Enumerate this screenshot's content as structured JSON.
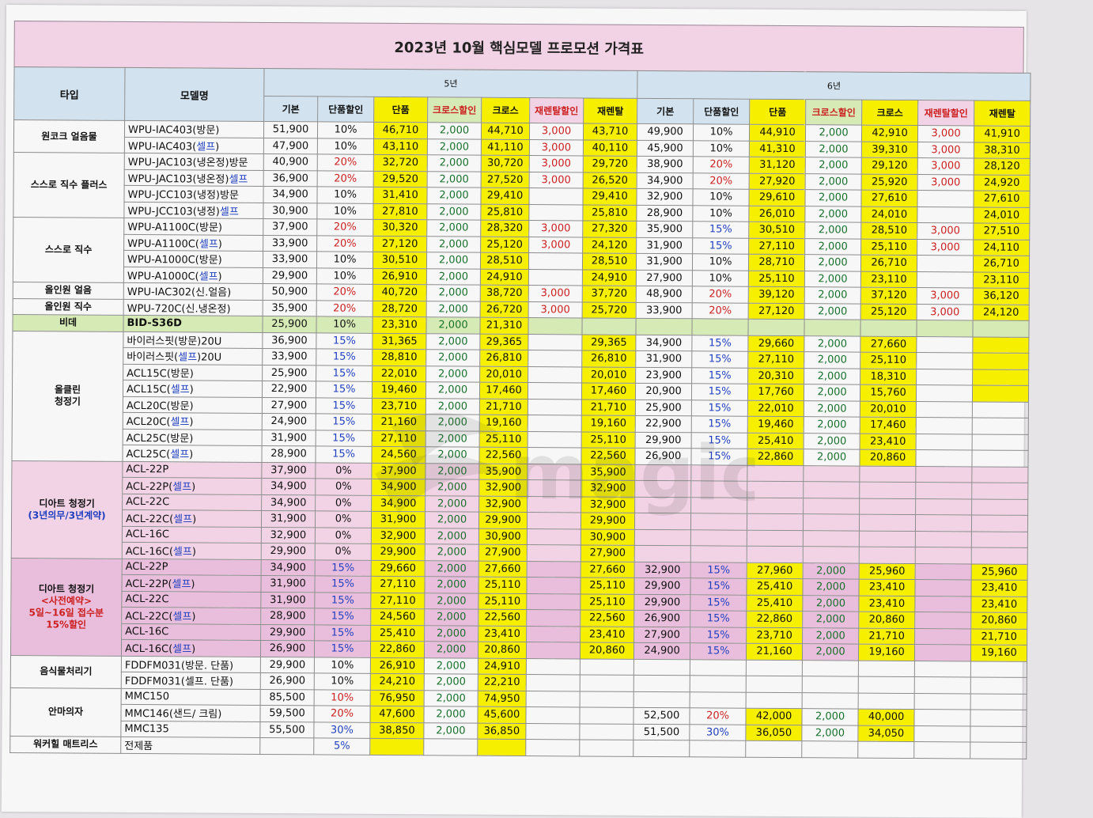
{
  "title": "2023년 10월 핵심모델 프로모션 가격표",
  "headers": {
    "type": "타입",
    "model": "모델명",
    "year5": "5년",
    "year6": "6년",
    "cols5": [
      "기본",
      "단품할인",
      "단품",
      "크로스할인",
      "크로스",
      "재렌탈할인",
      "재렌탈"
    ],
    "cols6": [
      "기본",
      "단품할인",
      "단품",
      "크로스할인",
      "크로스",
      "재렌탈할인",
      "재렌탈"
    ]
  },
  "type_labels": {
    "t1": "원코크 얼음물",
    "t2": "스스로 직수 플러스",
    "t3": "스스로 직수",
    "t4": "올인원 얼음",
    "t5": "올인원 직수",
    "t6": "비데",
    "t7a": "올클린",
    "t7b": "청정기",
    "t8a": "디아트 청정기",
    "t8b": "(3년의무/3년계약)",
    "t9a": "디아트 청정기",
    "t9b": "<사전예약>",
    "t9c": "5일~16일 접수분",
    "t9d": "15%할인",
    "t10": "음식물처리기",
    "t11": "안마의자",
    "t12": "워커힐 매트리스"
  },
  "rows": [
    {
      "model": "WPU-IAC403(방문)",
      "m": [
        "51,900",
        "10%",
        "46,710",
        "2,000",
        "44,710",
        "3,000",
        "43,710"
      ],
      "s": [
        "49,900",
        "10%",
        "44,910",
        "2,000",
        "42,910",
        "3,000",
        "41,910"
      ]
    },
    {
      "model": "WPU-IAC403(셀프)",
      "m": [
        "47,900",
        "10%",
        "43,110",
        "2,000",
        "41,110",
        "3,000",
        "40,110"
      ],
      "s": [
        "45,900",
        "10%",
        "41,310",
        "2,000",
        "39,310",
        "3,000",
        "38,310"
      ]
    },
    {
      "model": "WPU-JAC103(냉온정)방문",
      "m": [
        "40,900",
        "20%",
        "32,720",
        "2,000",
        "30,720",
        "3,000",
        "29,720"
      ],
      "s": [
        "38,900",
        "20%",
        "31,120",
        "2,000",
        "29,120",
        "3,000",
        "28,120"
      ]
    },
    {
      "model": "WPU-JAC103(냉온정)셀프",
      "m": [
        "36,900",
        "20%",
        "29,520",
        "2,000",
        "27,520",
        "3,000",
        "26,520"
      ],
      "s": [
        "34,900",
        "20%",
        "27,920",
        "2,000",
        "25,920",
        "3,000",
        "24,920"
      ]
    },
    {
      "model": "WPU-JCC103(냉정)방문",
      "m": [
        "34,900",
        "10%",
        "31,410",
        "2,000",
        "29,410",
        "",
        "29,410"
      ],
      "s": [
        "32,900",
        "10%",
        "29,610",
        "2,000",
        "27,610",
        "",
        "27,610"
      ]
    },
    {
      "model": "WPU-JCC103(냉정)셀프",
      "m": [
        "30,900",
        "10%",
        "27,810",
        "2,000",
        "25,810",
        "",
        "25,810"
      ],
      "s": [
        "28,900",
        "10%",
        "26,010",
        "2,000",
        "24,010",
        "",
        "24,010"
      ]
    },
    {
      "model": "WPU-A1100C(방문)",
      "m": [
        "37,900",
        "20%",
        "30,320",
        "2,000",
        "28,320",
        "3,000",
        "27,320"
      ],
      "s": [
        "35,900",
        "15%",
        "30,510",
        "2,000",
        "28,510",
        "3,000",
        "27,510"
      ]
    },
    {
      "model": "WPU-A1100C(셀프)",
      "m": [
        "33,900",
        "20%",
        "27,120",
        "2,000",
        "25,120",
        "3,000",
        "24,120"
      ],
      "s": [
        "31,900",
        "15%",
        "27,110",
        "2,000",
        "25,110",
        "3,000",
        "24,110"
      ]
    },
    {
      "model": "WPU-A1000C(방문)",
      "m": [
        "33,900",
        "10%",
        "30,510",
        "2,000",
        "28,510",
        "",
        "28,510"
      ],
      "s": [
        "31,900",
        "10%",
        "28,710",
        "2,000",
        "26,710",
        "",
        "26,710"
      ]
    },
    {
      "model": "WPU-A1000C(셀프)",
      "m": [
        "29,900",
        "10%",
        "26,910",
        "2,000",
        "24,910",
        "",
        "24,910"
      ],
      "s": [
        "27,900",
        "10%",
        "25,110",
        "2,000",
        "23,110",
        "",
        "23,110"
      ]
    },
    {
      "model": "WPU-IAC302(신.얼음)",
      "m": [
        "50,900",
        "20%",
        "40,720",
        "2,000",
        "38,720",
        "3,000",
        "37,720"
      ],
      "s": [
        "48,900",
        "20%",
        "39,120",
        "2,000",
        "37,120",
        "3,000",
        "36,120"
      ]
    },
    {
      "model": "WPU-720C(신.냉온정)",
      "m": [
        "35,900",
        "20%",
        "28,720",
        "2,000",
        "26,720",
        "3,000",
        "25,720"
      ],
      "s": [
        "33,900",
        "20%",
        "27,120",
        "2,000",
        "25,120",
        "3,000",
        "24,120"
      ]
    },
    {
      "model": "BID-S36D",
      "m": [
        "25,900",
        "10%",
        "23,310",
        "2,000",
        "21,310",
        "",
        ""
      ],
      "s": [
        "",
        "",
        "",
        "",
        "",
        "",
        ""
      ]
    },
    {
      "model": "바이러스핏(방문)20U",
      "m": [
        "36,900",
        "15%",
        "31,365",
        "2,000",
        "29,365",
        "",
        "29,365"
      ],
      "s": [
        "34,900",
        "15%",
        "29,660",
        "2,000",
        "27,660",
        "",
        ""
      ]
    },
    {
      "model": "바이러스핏(셀프)20U",
      "m": [
        "33,900",
        "15%",
        "28,810",
        "2,000",
        "26,810",
        "",
        "26,810"
      ],
      "s": [
        "31,900",
        "15%",
        "27,110",
        "2,000",
        "25,110",
        "",
        ""
      ]
    },
    {
      "model": "ACL15C(방문)",
      "m": [
        "25,900",
        "15%",
        "22,010",
        "2,000",
        "20,010",
        "",
        "20,010"
      ],
      "s": [
        "23,900",
        "15%",
        "20,310",
        "2,000",
        "18,310",
        "",
        ""
      ]
    },
    {
      "model": "ACL15C(셀프)",
      "m": [
        "22,900",
        "15%",
        "19,460",
        "2,000",
        "17,460",
        "",
        "17,460"
      ],
      "s": [
        "20,900",
        "15%",
        "17,760",
        "2,000",
        "15,760",
        "",
        ""
      ]
    },
    {
      "model": "ACL20C(방문)",
      "m": [
        "27,900",
        "15%",
        "23,710",
        "2,000",
        "21,710",
        "",
        "21,710"
      ],
      "s": [
        "25,900",
        "15%",
        "22,010",
        "2,000",
        "20,010",
        "",
        ""
      ]
    },
    {
      "model": "ACL20C(셀프)",
      "m": [
        "24,900",
        "15%",
        "21,160",
        "2,000",
        "19,160",
        "",
        "19,160"
      ],
      "s": [
        "22,900",
        "15%",
        "19,460",
        "2,000",
        "17,460",
        "",
        ""
      ]
    },
    {
      "model": "ACL25C(방문)",
      "m": [
        "31,900",
        "15%",
        "27,110",
        "2,000",
        "25,110",
        "",
        "25,110"
      ],
      "s": [
        "29,900",
        "15%",
        "25,410",
        "2,000",
        "23,410",
        "",
        ""
      ]
    },
    {
      "model": "ACL25C(셀프)",
      "m": [
        "28,900",
        "15%",
        "24,560",
        "2,000",
        "22,560",
        "",
        "22,560"
      ],
      "s": [
        "26,900",
        "15%",
        "22,860",
        "2,000",
        "20,860",
        "",
        ""
      ]
    },
    {
      "model": "ACL-22P",
      "m": [
        "37,900",
        "0%",
        "37,900",
        "2,000",
        "35,900",
        "",
        "35,900"
      ],
      "s": [
        "",
        "",
        "",
        "",
        "",
        "",
        ""
      ]
    },
    {
      "model": "ACL-22P(셀프)",
      "m": [
        "34,900",
        "0%",
        "34,900",
        "2,000",
        "32,900",
        "",
        "32,900"
      ],
      "s": [
        "",
        "",
        "",
        "",
        "",
        "",
        ""
      ]
    },
    {
      "model": "ACL-22C",
      "m": [
        "34,900",
        "0%",
        "34,900",
        "2,000",
        "32,900",
        "",
        "32,900"
      ],
      "s": [
        "",
        "",
        "",
        "",
        "",
        "",
        ""
      ]
    },
    {
      "model": "ACL-22C(셀프)",
      "m": [
        "31,900",
        "0%",
        "31,900",
        "2,000",
        "29,900",
        "",
        "29,900"
      ],
      "s": [
        "",
        "",
        "",
        "",
        "",
        "",
        ""
      ]
    },
    {
      "model": "ACL-16C",
      "m": [
        "32,900",
        "0%",
        "32,900",
        "2,000",
        "30,900",
        "",
        "30,900"
      ],
      "s": [
        "",
        "",
        "",
        "",
        "",
        "",
        ""
      ]
    },
    {
      "model": "ACL-16C(셀프)",
      "m": [
        "29,900",
        "0%",
        "29,900",
        "2,000",
        "27,900",
        "",
        "27,900"
      ],
      "s": [
        "",
        "",
        "",
        "",
        "",
        "",
        ""
      ]
    },
    {
      "model": "ACL-22P",
      "m": [
        "34,900",
        "15%",
        "29,660",
        "2,000",
        "27,660",
        "",
        "27,660"
      ],
      "s": [
        "32,900",
        "15%",
        "27,960",
        "2,000",
        "25,960",
        "",
        "25,960"
      ]
    },
    {
      "model": "ACL-22P(셀프)",
      "m": [
        "31,900",
        "15%",
        "27,110",
        "2,000",
        "25,110",
        "",
        "25,110"
      ],
      "s": [
        "29,900",
        "15%",
        "25,410",
        "2,000",
        "23,410",
        "",
        "23,410"
      ]
    },
    {
      "model": "ACL-22C",
      "m": [
        "31,900",
        "15%",
        "27,110",
        "2,000",
        "25,110",
        "",
        "25,110"
      ],
      "s": [
        "29,900",
        "15%",
        "25,410",
        "2,000",
        "23,410",
        "",
        "23,410"
      ]
    },
    {
      "model": "ACL-22C(셀프)",
      "m": [
        "28,900",
        "15%",
        "24,560",
        "2,000",
        "22,560",
        "",
        "22,560"
      ],
      "s": [
        "26,900",
        "15%",
        "22,860",
        "2,000",
        "20,860",
        "",
        "20,860"
      ]
    },
    {
      "model": "ACL-16C",
      "m": [
        "29,900",
        "15%",
        "25,410",
        "2,000",
        "23,410",
        "",
        "23,410"
      ],
      "s": [
        "27,900",
        "15%",
        "23,710",
        "2,000",
        "21,710",
        "",
        "21,710"
      ]
    },
    {
      "model": "ACL-16C(셀프)",
      "m": [
        "26,900",
        "15%",
        "22,860",
        "2,000",
        "20,860",
        "",
        "20,860"
      ],
      "s": [
        "24,900",
        "15%",
        "21,160",
        "2,000",
        "19,160",
        "",
        "19,160"
      ]
    },
    {
      "model": "FDDFM031(방문. 단품)",
      "m": [
        "29,900",
        "10%",
        "26,910",
        "2,000",
        "24,910",
        "",
        ""
      ],
      "s": [
        "",
        "",
        "",
        "",
        "",
        "",
        ""
      ]
    },
    {
      "model": "FDDFM031(셀프. 단품)",
      "m": [
        "26,900",
        "10%",
        "24,210",
        "2,000",
        "22,210",
        "",
        ""
      ],
      "s": [
        "",
        "",
        "",
        "",
        "",
        "",
        ""
      ]
    },
    {
      "model": "MMC150",
      "m": [
        "85,500",
        "10%",
        "76,950",
        "2,000",
        "74,950",
        "",
        ""
      ],
      "s": [
        "",
        "",
        "",
        "",
        "",
        "",
        ""
      ]
    },
    {
      "model": "MMC146(샌드/ 크림)",
      "m": [
        "59,500",
        "20%",
        "47,600",
        "2,000",
        "45,600",
        "",
        ""
      ],
      "s": [
        "52,500",
        "20%",
        "42,000",
        "2,000",
        "40,000",
        "",
        ""
      ]
    },
    {
      "model": "MMC135",
      "m": [
        "55,500",
        "30%",
        "38,850",
        "2,000",
        "36,850",
        "",
        ""
      ],
      "s": [
        "51,500",
        "30%",
        "36,050",
        "2,000",
        "34,050",
        "",
        ""
      ]
    },
    {
      "model": "전제품",
      "m": [
        "",
        "5%",
        "",
        "",
        "",
        "",
        ""
      ],
      "s": [
        "",
        "",
        "",
        "",
        "",
        "",
        ""
      ]
    }
  ],
  "watermark": "magic"
}
